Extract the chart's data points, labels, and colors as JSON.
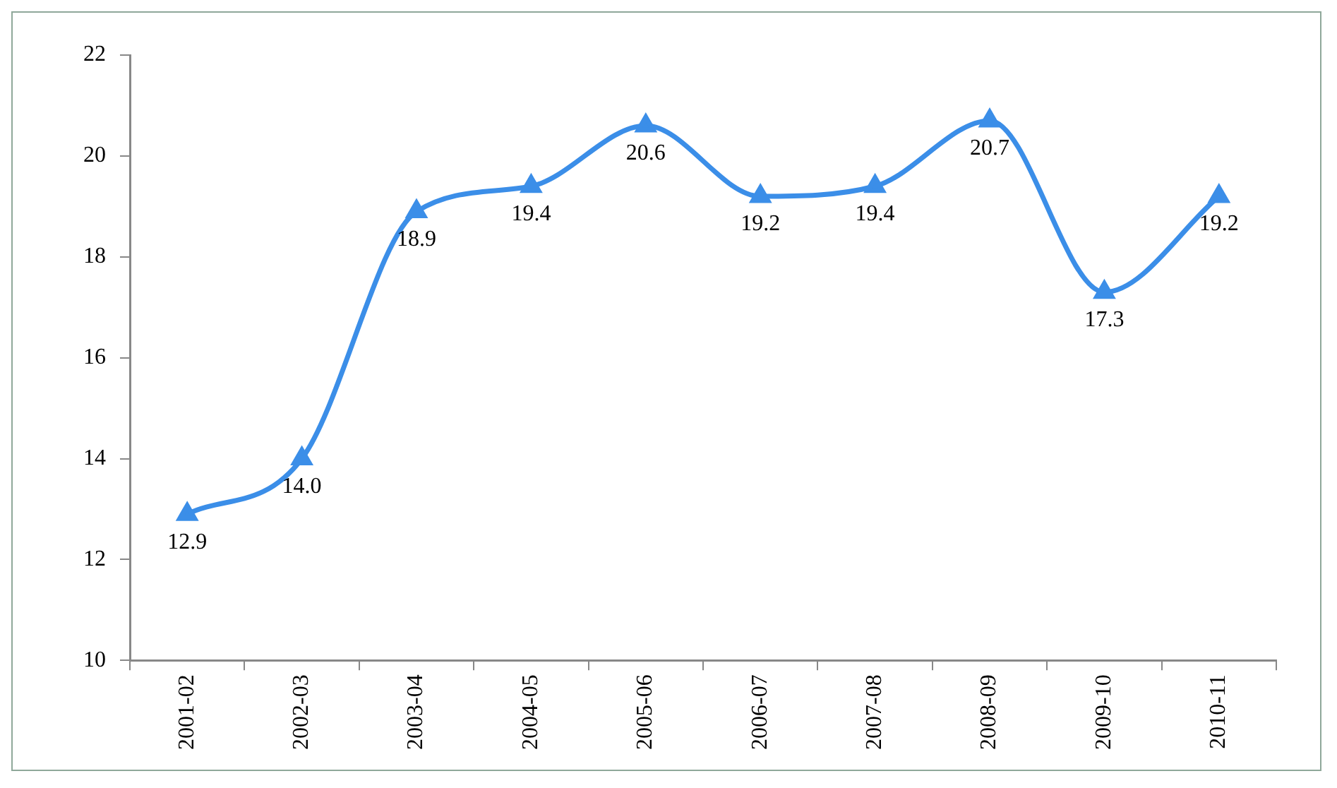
{
  "chart_data": {
    "type": "line",
    "categories": [
      "2001-02",
      "2002-03",
      "2003-04",
      "2004-05",
      "2005-06",
      "2006-07",
      "2007-08",
      "2008-09",
      "2009-10",
      "2010-11"
    ],
    "series": [
      {
        "color": "#3b8ee8",
        "values": [
          12.9,
          14.0,
          18.9,
          19.4,
          20.6,
          19.2,
          19.4,
          20.7,
          17.3,
          19.2
        ],
        "value_labels": [
          "12.9",
          "14.0",
          "18.9",
          "19.4",
          "20.6",
          "19.2",
          "19.4",
          "20.7",
          "17.3",
          "19.2"
        ]
      }
    ],
    "ylim": [
      10,
      22
    ],
    "yticks": [
      10,
      12,
      14,
      16,
      18,
      20,
      22
    ],
    "grid": false,
    "legend": false,
    "marker": "triangle",
    "line_style": "solid"
  }
}
